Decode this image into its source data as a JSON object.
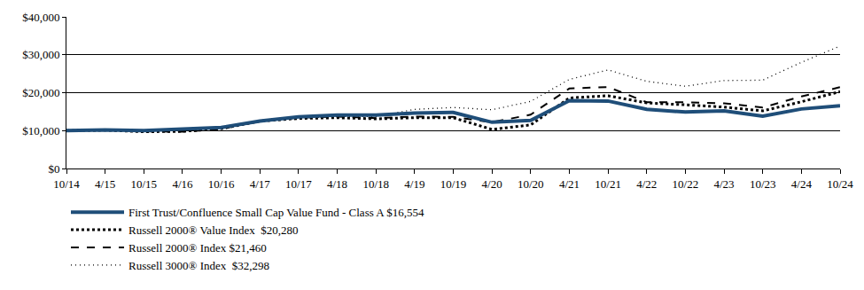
{
  "chart_data": {
    "type": "line",
    "categories": [
      "10/14",
      "4/15",
      "10/15",
      "4/16",
      "10/16",
      "4/17",
      "10/17",
      "4/18",
      "10/18",
      "4/19",
      "10/19",
      "4/20",
      "10/20",
      "4/21",
      "10/21",
      "4/22",
      "10/22",
      "4/23",
      "10/23",
      "4/24",
      "10/24"
    ],
    "series": [
      {
        "name": "First Trust/Confluence Small Cap Value Fund - Class A $16,554",
        "color": "#1f4e79",
        "line_style": "solid",
        "values": [
          10000,
          10200,
          10000,
          10300,
          10800,
          12500,
          13600,
          14100,
          14100,
          14600,
          14800,
          12200,
          12700,
          17900,
          17800,
          15600,
          14900,
          15200,
          13800,
          15700,
          16554
        ]
      },
      {
        "name": "Russell 2000® Value Index  $20,280",
        "color": "#000000",
        "line_style": "dot",
        "values": [
          10000,
          10100,
          9700,
          9800,
          10500,
          12500,
          13200,
          13400,
          13100,
          13400,
          13400,
          10300,
          11500,
          18600,
          19200,
          17300,
          16800,
          16200,
          15200,
          17600,
          20280
        ]
      },
      {
        "name": "Russell 2000® Index $21,460",
        "color": "#000000",
        "line_style": "dash",
        "values": [
          10000,
          10300,
          9800,
          9700,
          10400,
          12600,
          13400,
          13700,
          13300,
          13700,
          13600,
          12200,
          14200,
          21100,
          21500,
          17500,
          17500,
          17200,
          16100,
          19000,
          21460
        ]
      },
      {
        "name": "Russell 3000® Index  $32,298",
        "color": "#000000",
        "line_style": "finedot",
        "values": [
          10000,
          10300,
          10000,
          10300,
          10500,
          12600,
          13300,
          13700,
          13700,
          15600,
          16100,
          15500,
          17700,
          23500,
          26000,
          23000,
          21700,
          23200,
          23300,
          28000,
          32298
        ]
      }
    ],
    "ylim": [
      0,
      40000
    ],
    "yticks": [
      {
        "value": 0,
        "label": "$0"
      },
      {
        "value": 10000,
        "label": "$10,000"
      },
      {
        "value": 20000,
        "label": "$20,000"
      },
      {
        "value": 30000,
        "label": "$30,000"
      },
      {
        "value": 40000,
        "label": "$40,000"
      }
    ],
    "grid": true,
    "legend": "bottom-left"
  }
}
